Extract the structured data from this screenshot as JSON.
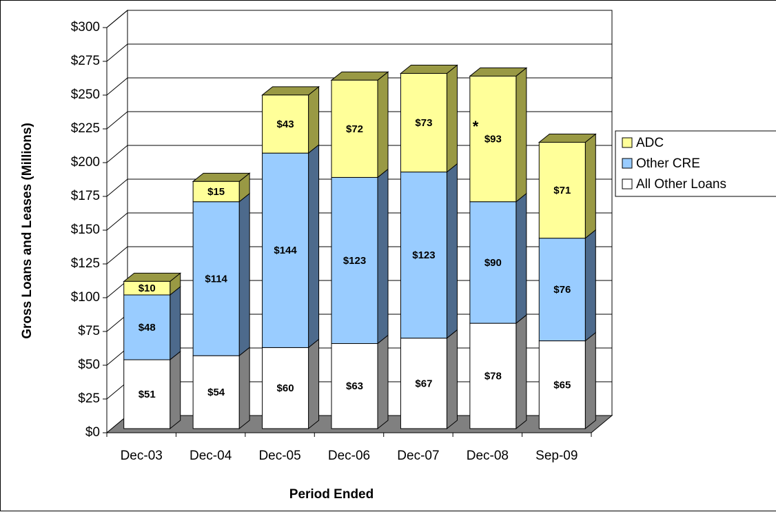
{
  "chart_data": {
    "type": "stacked-bar-3d",
    "x_label": "Period Ended",
    "y_label": "Gross Loans and Leases (Millions)",
    "annotation": "*",
    "categories": [
      "Dec-03",
      "Dec-04",
      "Dec-05",
      "Dec-06",
      "Dec-07",
      "Dec-08",
      "Sep-09"
    ],
    "series": [
      {
        "name": "All Other Loans",
        "color": "#ffffff",
        "side_color": "#808080",
        "values": [
          51,
          54,
          60,
          63,
          67,
          78,
          65
        ],
        "value_labels": [
          "$51",
          "$54",
          "$60",
          "$63",
          "$67",
          "$78",
          "$65"
        ]
      },
      {
        "name": "Other CRE",
        "color": "#99ccff",
        "side_color": "#4d6a8c",
        "values": [
          48,
          114,
          144,
          123,
          123,
          90,
          76
        ],
        "value_labels": [
          "$48",
          "$114",
          "$144",
          "$123",
          "$123",
          "$90",
          "$76"
        ]
      },
      {
        "name": "ADC",
        "color": "#ffff99",
        "side_color": "#999944",
        "values": [
          10,
          15,
          43,
          72,
          73,
          93,
          71
        ],
        "value_labels": [
          "$10",
          "$15",
          "$43",
          "$72",
          "$73",
          "$93",
          "$71"
        ]
      }
    ],
    "ylim": [
      0,
      300
    ],
    "yticks": [
      {
        "value": 0,
        "label": "$0"
      },
      {
        "value": 25,
        "label": "$25"
      },
      {
        "value": 50,
        "label": "$50"
      },
      {
        "value": 75,
        "label": "$75"
      },
      {
        "value": 100,
        "label": "$100"
      },
      {
        "value": 125,
        "label": "$125"
      },
      {
        "value": 150,
        "label": "$150"
      },
      {
        "value": 175,
        "label": "$175"
      },
      {
        "value": 200,
        "label": "$200"
      },
      {
        "value": 225,
        "label": "$225"
      },
      {
        "value": 250,
        "label": "$250"
      },
      {
        "value": 275,
        "label": "$275"
      },
      {
        "value": 300,
        "label": "$300"
      }
    ],
    "grid": true,
    "legend": "right"
  }
}
